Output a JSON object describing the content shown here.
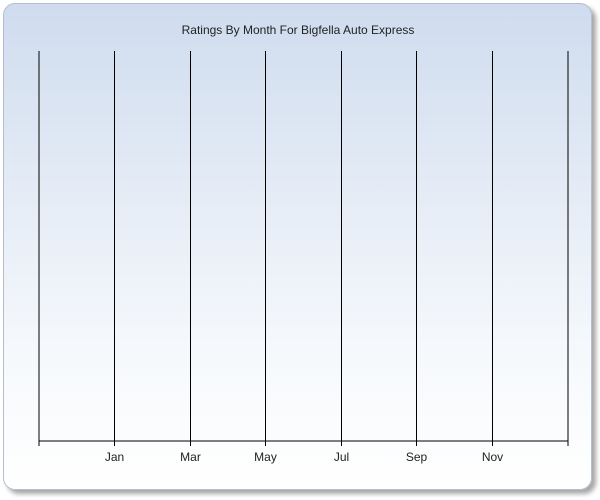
{
  "chart_data": {
    "type": "line",
    "title": "Ratings By Month For Bigfella Auto Express",
    "xlabel": "",
    "ylabel": "",
    "x_tick_labels": [
      "Jan",
      "Mar",
      "May",
      "Jul",
      "Sep",
      "Nov"
    ],
    "grid": "vertical",
    "legend": "none",
    "series": []
  },
  "colors": {
    "gradient_top": "#cfdcee",
    "gradient_bottom": "#ffffff",
    "grid_line": "#000000"
  }
}
